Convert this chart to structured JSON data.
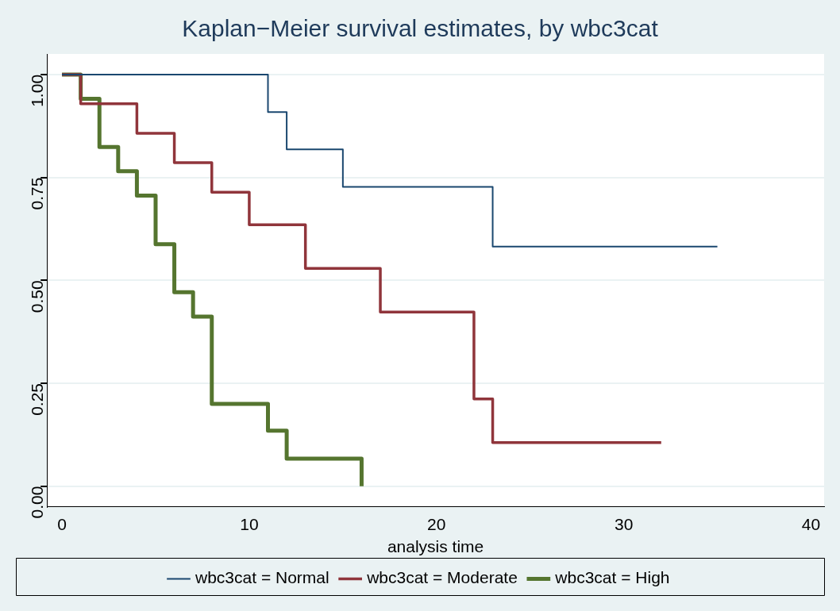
{
  "chart_data": {
    "type": "step",
    "title": "Kaplan−Meier survival estimates, by wbc3cat",
    "xlabel": "analysis time",
    "xlim": [
      -0.8,
      40.7
    ],
    "xticks": [
      0,
      10,
      20,
      30,
      40
    ],
    "ylim": [
      -0.05,
      1.05
    ],
    "yticks": [
      {
        "value": 0,
        "label": "0.00"
      },
      {
        "value": 0.25,
        "label": "0.25"
      },
      {
        "value": 0.5,
        "label": "0.50"
      },
      {
        "value": 0.75,
        "label": "0.75"
      },
      {
        "value": 1,
        "label": "1.00"
      }
    ],
    "grid": "y",
    "legend": "bottom",
    "marker": "none",
    "line_style": "solid",
    "series": [
      {
        "name": "wbc3cat = Normal",
        "color": "#1a476f",
        "x": [
          0,
          11,
          12,
          15,
          23,
          35
        ],
        "values": [
          1,
          0.909,
          0.818,
          0.727,
          0.582,
          0.582
        ]
      },
      {
        "name": "wbc3cat = Moderate",
        "color": "#90353b",
        "x": [
          0,
          1,
          4,
          6,
          8,
          10,
          13,
          17,
          22,
          23,
          32
        ],
        "values": [
          1,
          0.929,
          0.857,
          0.786,
          0.714,
          0.635,
          0.529,
          0.423,
          0.212,
          0.106,
          0.106
        ]
      },
      {
        "name": "wbc3cat = High",
        "color": "#55752f",
        "x": [
          0,
          1,
          2,
          3,
          4,
          5,
          6,
          7,
          8,
          11,
          12,
          16
        ],
        "values": [
          1,
          0.941,
          0.824,
          0.765,
          0.706,
          0.588,
          0.471,
          0.412,
          0.2,
          0.135,
          0.067,
          0
        ]
      }
    ]
  }
}
